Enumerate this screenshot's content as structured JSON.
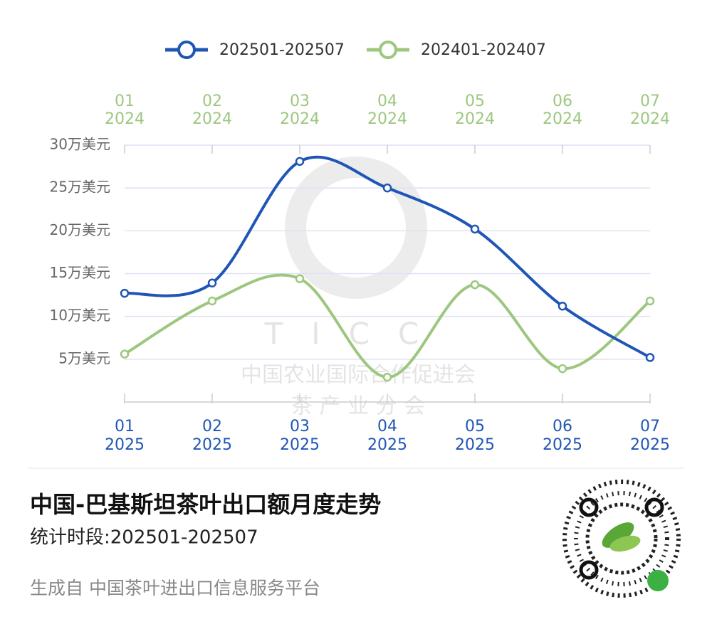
{
  "chart_data": {
    "type": "line",
    "title": "中国-巴基斯坦茶叶出口额月度走势",
    "subtitle": "统计时段:202501-202507",
    "footer": "生成自 中国茶叶进出口信息服务平台",
    "watermark": {
      "logo": "TICC",
      "line1": "中国农业国际合作促进会",
      "line2": "茶 产 业 分 会"
    },
    "categories": [
      {
        "month": "01",
        "year": "2025"
      },
      {
        "month": "02",
        "year": "2025"
      },
      {
        "month": "03",
        "year": "2025"
      },
      {
        "month": "04",
        "year": "2025"
      },
      {
        "month": "05",
        "year": "2025"
      },
      {
        "month": "06",
        "year": "2025"
      },
      {
        "month": "07",
        "year": "2025"
      }
    ],
    "top_categories": [
      {
        "month": "01",
        "year": "2024"
      },
      {
        "month": "02",
        "year": "2024"
      },
      {
        "month": "03",
        "year": "2024"
      },
      {
        "month": "04",
        "year": "2024"
      },
      {
        "month": "05",
        "year": "2024"
      },
      {
        "month": "06",
        "year": "2024"
      },
      {
        "month": "07",
        "year": "2024"
      }
    ],
    "series": [
      {
        "name": "202501-202507",
        "color": "#1f56b5",
        "values": [
          12.7,
          13.9,
          28.1,
          25.0,
          20.2,
          11.2,
          5.2
        ]
      },
      {
        "name": "202401-202407",
        "color": "#9dc77e",
        "values": [
          5.6,
          11.8,
          14.4,
          2.9,
          13.7,
          3.9,
          11.8
        ]
      }
    ],
    "ylim": [
      0,
      30
    ],
    "yticks": [
      {
        "value": 5,
        "label": "5万美元"
      },
      {
        "value": 10,
        "label": "10万美元"
      },
      {
        "value": 15,
        "label": "15万美元"
      },
      {
        "value": 20,
        "label": "20万美元"
      },
      {
        "value": 25,
        "label": "25万美元"
      },
      {
        "value": 30,
        "label": "30万美元"
      }
    ],
    "grid": true,
    "legend": "top"
  }
}
